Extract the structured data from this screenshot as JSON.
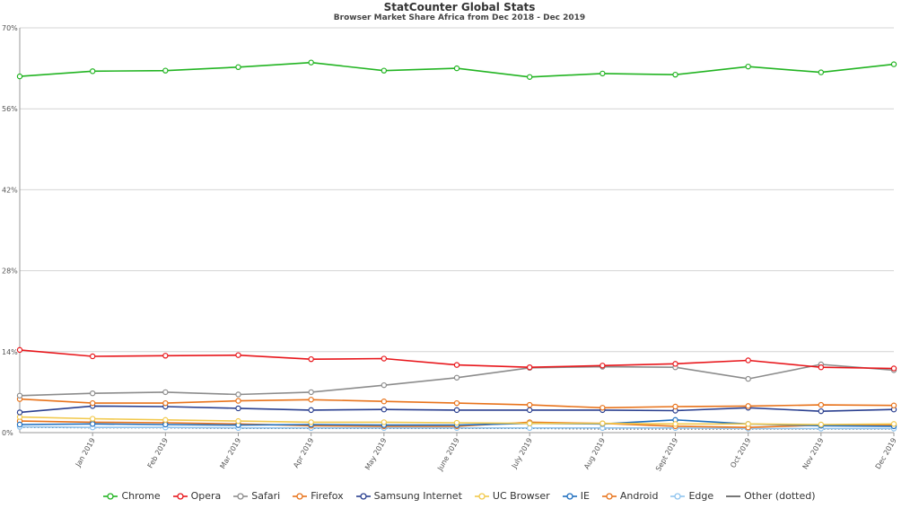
{
  "chart_data": {
    "type": "line",
    "title": "StatCounter Global Stats",
    "subtitle": "Browser Market Share Africa from Dec 2018 - Dec 2019",
    "categories": [
      "Dec 2018",
      "Jan 2019",
      "Feb 2019",
      "Mar 2019",
      "Apr 2019",
      "May 2019",
      "June 2019",
      "July 2019",
      "Aug 2019",
      "Sept 2019",
      "Oct 2019",
      "Nov 2019",
      "Dec 2019"
    ],
    "x_tick_labels": [
      "Jan 2019",
      "Feb 2019",
      "Mar 2019",
      "Apr 2019",
      "May 2019",
      "June 2019",
      "July 2019",
      "Aug 2019",
      "Sept 2019",
      "Oct 2019",
      "Nov 2019",
      "Dec 2019"
    ],
    "y_ticks": [
      "0%",
      "14%",
      "28%",
      "42%",
      "56%",
      "70%"
    ],
    "ylim": [
      0,
      70
    ],
    "grid": true,
    "legend_position": "bottom",
    "series": [
      {
        "name": "Chrome",
        "color": "#22b422",
        "dotted": false,
        "values": [
          61.6,
          62.5,
          62.6,
          63.2,
          64.0,
          62.6,
          63.0,
          61.5,
          62.1,
          61.9,
          63.3,
          62.3,
          63.7
        ]
      },
      {
        "name": "Opera",
        "color": "#e8161b",
        "dotted": false,
        "values": [
          14.3,
          13.2,
          13.3,
          13.4,
          12.7,
          12.8,
          11.7,
          11.3,
          11.6,
          11.9,
          12.5,
          11.3,
          11.1
        ]
      },
      {
        "name": "Safari",
        "color": "#8c8c8c",
        "dotted": false,
        "values": [
          6.4,
          6.8,
          7.0,
          6.6,
          7.0,
          8.2,
          9.5,
          11.2,
          11.4,
          11.3,
          9.3,
          11.8,
          10.8
        ]
      },
      {
        "name": "Firefox",
        "color": "#e8731b",
        "dotted": false,
        "values": [
          5.8,
          5.1,
          5.1,
          5.5,
          5.7,
          5.4,
          5.1,
          4.8,
          4.3,
          4.5,
          4.6,
          4.8,
          4.7
        ]
      },
      {
        "name": "Samsung Internet",
        "color": "#2a3f8f",
        "dotted": false,
        "values": [
          3.5,
          4.6,
          4.5,
          4.2,
          3.9,
          4.0,
          3.9,
          3.9,
          3.9,
          3.8,
          4.3,
          3.7,
          4.0
        ]
      },
      {
        "name": "UC Browser",
        "color": "#f2c94c",
        "dotted": false,
        "values": [
          2.7,
          2.4,
          2.2,
          2.0,
          1.8,
          1.8,
          1.7,
          1.6,
          1.6,
          1.5,
          1.5,
          1.4,
          1.5
        ]
      },
      {
        "name": "IE",
        "color": "#1f6fbf",
        "dotted": false,
        "values": [
          1.4,
          1.5,
          1.4,
          1.3,
          1.4,
          1.3,
          1.3,
          1.6,
          1.5,
          2.2,
          1.5,
          1.2,
          1.1
        ]
      },
      {
        "name": "Android",
        "color": "#e8731b",
        "dotted": false,
        "values": [
          2.0,
          1.8,
          1.7,
          1.5,
          1.2,
          1.1,
          1.1,
          1.8,
          1.6,
          1.1,
          0.9,
          1.3,
          1.3
        ]
      },
      {
        "name": "Edge",
        "color": "#8fc4ef",
        "dotted": false,
        "values": [
          1.0,
          0.9,
          0.9,
          0.8,
          0.8,
          0.8,
          0.8,
          0.8,
          0.8,
          0.8,
          0.7,
          0.7,
          0.7
        ]
      },
      {
        "name": "Other (dotted)",
        "color": "#555555",
        "dotted": true,
        "values": [
          0.9,
          0.8,
          0.8,
          0.7,
          0.7,
          0.7,
          0.7,
          0.7,
          0.6,
          0.6,
          0.6,
          0.6,
          0.6
        ]
      }
    ]
  }
}
